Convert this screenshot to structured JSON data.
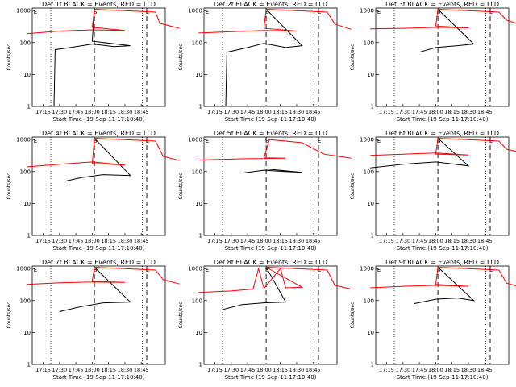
{
  "chart_data": [
    {
      "type": "line",
      "title": "Det 1f BLACK = Events, RED = LLD",
      "ylabel": "Counts/sec",
      "xlabel": "Start Time (19-Sep-11 17:10:40)",
      "yscale": "log",
      "ylim": [
        1,
        1000
      ],
      "yticks": [
        "1",
        "10",
        "100",
        "1000"
      ],
      "xticks": [
        "17:15",
        "17:30",
        "17:45",
        "18:00",
        "18:15",
        "18:30",
        "18:45"
      ],
      "markers": [
        "E",
        "S",
        "E"
      ],
      "series": [
        {
          "name": "Events",
          "color": "#000000",
          "values": [
            [
              17.25,
              1
            ],
            [
              17.26,
              60
            ],
            [
              17.4,
              70
            ],
            [
              17.6,
              90
            ],
            [
              17.8,
              75
            ],
            [
              17.95,
              80
            ],
            [
              18.0,
              110
            ],
            [
              18.02,
              1100
            ]
          ]
        },
        {
          "name": "LLD",
          "color": "#ff0000",
          "values": [
            [
              17.0,
              190
            ],
            [
              17.3,
              230
            ],
            [
              17.6,
              250
            ],
            [
              17.9,
              240
            ],
            [
              18.0,
              300
            ],
            [
              18.02,
              1100
            ],
            [
              18.58,
              900
            ],
            [
              18.62,
              400
            ],
            [
              18.8,
              280
            ]
          ]
        }
      ]
    },
    {
      "type": "line",
      "title": "Det 2f BLACK = Events, RED = LLD",
      "ylabel": "Counts/sec",
      "xlabel": "Start Time (19-Sep-11 17:10:40)",
      "yscale": "log",
      "ylim": [
        1,
        1000
      ],
      "yticks": [
        "1",
        "10",
        "100",
        "1000"
      ],
      "xticks": [
        "17:15",
        "17:30",
        "17:45",
        "18:00",
        "18:15",
        "18:30",
        "18:45"
      ],
      "markers": [
        "E",
        "S",
        "E"
      ],
      "series": [
        {
          "name": "Events",
          "color": "#000000",
          "values": [
            [
              17.25,
              1
            ],
            [
              17.26,
              50
            ],
            [
              17.45,
              70
            ],
            [
              17.6,
              95
            ],
            [
              17.8,
              70
            ],
            [
              17.95,
              80
            ],
            [
              18.02,
              1100
            ]
          ]
        },
        {
          "name": "LLD",
          "color": "#ff0000",
          "values": [
            [
              17.0,
              200
            ],
            [
              17.3,
              220
            ],
            [
              17.6,
              240
            ],
            [
              17.9,
              230
            ],
            [
              18.0,
              280
            ],
            [
              18.02,
              1100
            ],
            [
              18.58,
              900
            ],
            [
              18.65,
              380
            ],
            [
              18.8,
              260
            ]
          ]
        }
      ]
    },
    {
      "type": "line",
      "title": "Det 3f BLACK = Events, RED = LLD",
      "ylabel": "Counts/sec",
      "xlabel": "Start Time (19-Sep-11 17:10:40)",
      "yscale": "log",
      "ylim": [
        1,
        1000
      ],
      "yticks": [
        "1",
        "10",
        "100",
        "1000"
      ],
      "xticks": [
        "17:15",
        "17:30",
        "17:45",
        "18:00",
        "18:15",
        "18:30",
        "18:45"
      ],
      "markers": [
        "E",
        "S",
        "E"
      ],
      "series": [
        {
          "name": "Events",
          "color": "#000000",
          "values": [
            [
              17.45,
              50
            ],
            [
              17.6,
              70
            ],
            [
              17.8,
              80
            ],
            [
              17.95,
              90
            ],
            [
              18.02,
              1100
            ]
          ]
        },
        {
          "name": "LLD",
          "color": "#ff0000",
          "values": [
            [
              17.0,
              270
            ],
            [
              17.3,
              280
            ],
            [
              17.6,
              300
            ],
            [
              17.9,
              290
            ],
            [
              18.0,
              330
            ],
            [
              18.02,
              1100
            ],
            [
              18.58,
              900
            ],
            [
              18.65,
              500
            ],
            [
              18.8,
              350
            ]
          ]
        }
      ]
    },
    {
      "type": "line",
      "title": "Det 4f BLACK = Events, RED = LLD",
      "ylabel": "Counts/sec",
      "xlabel": "Start Time (19-Sep-11 17:10:40)",
      "yscale": "log",
      "ylim": [
        1,
        1000
      ],
      "yticks": [
        "1",
        "10",
        "100",
        "1000"
      ],
      "xticks": [
        "17:15",
        "17:30",
        "17:45",
        "18:00",
        "18:15",
        "18:30",
        "18:45"
      ],
      "markers": [
        "E",
        "S",
        "E"
      ],
      "series": [
        {
          "name": "Events",
          "color": "#000000",
          "values": [
            [
              17.35,
              50
            ],
            [
              17.5,
              65
            ],
            [
              17.7,
              80
            ],
            [
              17.95,
              75
            ],
            [
              18.02,
              1100
            ]
          ]
        },
        {
          "name": "LLD",
          "color": "#ff0000",
          "values": [
            [
              17.0,
              140
            ],
            [
              17.3,
              170
            ],
            [
              17.6,
              200
            ],
            [
              17.9,
              160
            ],
            [
              18.0,
              180
            ],
            [
              18.02,
              1100
            ],
            [
              18.58,
              900
            ],
            [
              18.65,
              300
            ],
            [
              18.8,
              220
            ]
          ]
        }
      ]
    },
    {
      "type": "line",
      "title": "Det 5f BLACK = Events, RED = LLD",
      "ylabel": "Counts/sec",
      "xlabel": "Start Time (19-Sep-11 17:10:40)",
      "yscale": "log",
      "ylim": [
        1,
        1000
      ],
      "yticks": [
        "1",
        "10",
        "100",
        "1000"
      ],
      "xticks": [
        "17:15",
        "17:30",
        "17:45",
        "18:00",
        "18:15",
        "18:30",
        "18:45"
      ],
      "markers": [
        "E",
        "S",
        "E"
      ],
      "series": [
        {
          "name": "Events",
          "color": "#000000",
          "values": [
            [
              17.4,
              90
            ],
            [
              17.6,
              110
            ],
            [
              17.8,
              100
            ],
            [
              17.95,
              95
            ],
            [
              18.02,
              120
            ]
          ]
        },
        {
          "name": "LLD",
          "color": "#ff0000",
          "values": [
            [
              17.0,
              230
            ],
            [
              17.4,
              250
            ],
            [
              17.8,
              260
            ],
            [
              18.0,
              270
            ],
            [
              18.05,
              1000
            ],
            [
              18.2,
              900
            ],
            [
              18.35,
              800
            ],
            [
              18.55,
              350
            ],
            [
              18.8,
              260
            ]
          ]
        }
      ]
    },
    {
      "type": "line",
      "title": "Det 6f BLACK = Events, RED = LLD",
      "ylabel": "Counts/sec",
      "xlabel": "Start Time (19-Sep-11 17:10:40)",
      "yscale": "log",
      "ylim": [
        1,
        1000
      ],
      "yticks": [
        "1",
        "10",
        "100",
        "1000"
      ],
      "xticks": [
        "17:15",
        "17:30",
        "17:45",
        "18:00",
        "18:15",
        "18:30",
        "18:45"
      ],
      "markers": [
        "E",
        "S",
        "E"
      ],
      "series": [
        {
          "name": "Events",
          "color": "#000000",
          "values": [
            [
              17.0,
              130
            ],
            [
              17.3,
              170
            ],
            [
              17.6,
              200
            ],
            [
              17.9,
              150
            ],
            [
              18.02,
              1100
            ]
          ]
        },
        {
          "name": "LLD",
          "color": "#ff0000",
          "values": [
            [
              17.0,
              320
            ],
            [
              17.3,
              350
            ],
            [
              17.6,
              380
            ],
            [
              17.9,
              330
            ],
            [
              18.0,
              350
            ],
            [
              18.02,
              1100
            ],
            [
              18.58,
              900
            ],
            [
              18.65,
              500
            ],
            [
              18.8,
              380
            ]
          ]
        }
      ]
    },
    {
      "type": "line",
      "title": "Det 7f BLACK = Events, RED = LLD",
      "ylabel": "Counts/sec",
      "xlabel": "Start Time (19-Sep-11 17:10:40)",
      "yscale": "log",
      "ylim": [
        1,
        1000
      ],
      "yticks": [
        "1",
        "10",
        "100",
        "1000"
      ],
      "xticks": [
        "17:15",
        "17:30",
        "17:45",
        "18:00",
        "18:15",
        "18:30",
        "18:45"
      ],
      "markers": [
        "E",
        "S",
        "E"
      ],
      "series": [
        {
          "name": "Events",
          "color": "#000000",
          "values": [
            [
              17.3,
              45
            ],
            [
              17.5,
              65
            ],
            [
              17.7,
              85
            ],
            [
              17.95,
              90
            ],
            [
              18.02,
              1100
            ]
          ]
        },
        {
          "name": "LLD",
          "color": "#ff0000",
          "values": [
            [
              17.0,
              320
            ],
            [
              17.3,
              360
            ],
            [
              17.6,
              380
            ],
            [
              17.9,
              370
            ],
            [
              18.0,
              400
            ],
            [
              18.02,
              1100
            ],
            [
              18.58,
              900
            ],
            [
              18.65,
              450
            ],
            [
              18.8,
              330
            ]
          ]
        }
      ]
    },
    {
      "type": "line",
      "title": "Det 8f BLACK = Events, RED = LLD",
      "ylabel": "Counts/sec",
      "xlabel": "Start Time (19-Sep-11 17:10:40)",
      "yscale": "log",
      "ylim": [
        1,
        1000
      ],
      "yticks": [
        "1",
        "10",
        "100",
        "1000"
      ],
      "xticks": [
        "17:15",
        "17:30",
        "17:45",
        "18:00",
        "18:15",
        "18:30",
        "18:45"
      ],
      "markers": [
        "E",
        "S",
        "E"
      ],
      "series": [
        {
          "name": "Events",
          "color": "#000000",
          "values": [
            [
              17.2,
              50
            ],
            [
              17.4,
              75
            ],
            [
              17.6,
              85
            ],
            [
              17.8,
              90
            ],
            [
              18.02,
              1100
            ]
          ]
        },
        {
          "name": "LLD",
          "color": "#ff0000",
          "values": [
            [
              17.0,
              180
            ],
            [
              17.3,
              200
            ],
            [
              17.5,
              230
            ],
            [
              17.55,
              1000
            ],
            [
              17.6,
              240
            ],
            [
              17.75,
              1000
            ],
            [
              17.8,
              250
            ],
            [
              17.95,
              260
            ],
            [
              18.02,
              1100
            ],
            [
              18.58,
              900
            ],
            [
              18.65,
              300
            ],
            [
              18.8,
              230
            ]
          ]
        }
      ]
    },
    {
      "type": "line",
      "title": "Det 9f BLACK = Events, RED = LLD",
      "ylabel": "Counts/sec",
      "xlabel": "Start Time (19-Sep-11 17:10:40)",
      "yscale": "log",
      "ylim": [
        1,
        1000
      ],
      "yticks": [
        "1",
        "10",
        "100",
        "1000"
      ],
      "xticks": [
        "17:15",
        "17:30",
        "17:45",
        "18:00",
        "18:15",
        "18:30",
        "18:45"
      ],
      "markers": [
        "E",
        "S",
        "E"
      ],
      "series": [
        {
          "name": "Events",
          "color": "#000000",
          "values": [
            [
              17.4,
              80
            ],
            [
              17.6,
              110
            ],
            [
              17.8,
              120
            ],
            [
              17.95,
              100
            ],
            [
              18.02,
              1100
            ]
          ]
        },
        {
          "name": "LLD",
          "color": "#ff0000",
          "values": [
            [
              17.0,
              250
            ],
            [
              17.3,
              280
            ],
            [
              17.6,
              300
            ],
            [
              17.9,
              280
            ],
            [
              18.0,
              320
            ],
            [
              18.02,
              1100
            ],
            [
              18.58,
              900
            ],
            [
              18.65,
              350
            ],
            [
              18.8,
              250
            ]
          ]
        }
      ]
    }
  ]
}
